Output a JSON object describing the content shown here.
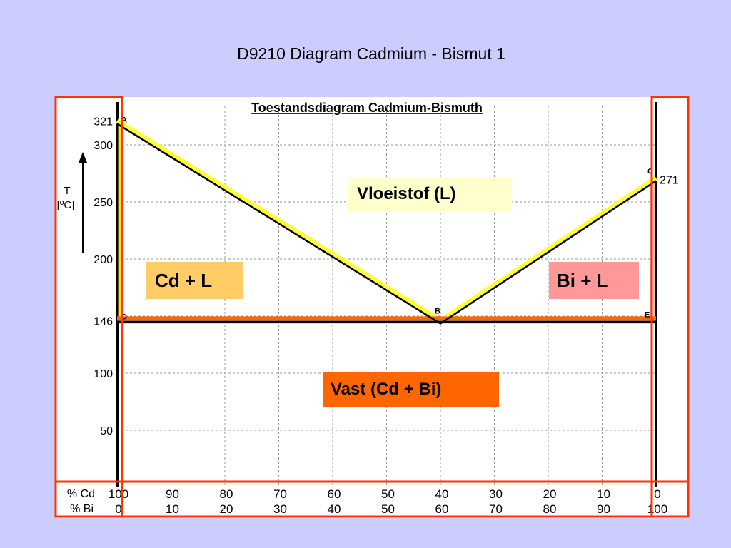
{
  "slide": {
    "title": "D9210 Diagram Cadmium - Bismut 1"
  },
  "chart_data": {
    "type": "line",
    "title": "Toestandsdiagram Cadmium-Bismuth",
    "ylabel_line1": "T",
    "ylabel_line2": "[ºC]",
    "ylim": [
      0,
      340
    ],
    "xlim": [
      0,
      100
    ],
    "y_ticks": [
      50,
      100,
      146,
      200,
      250,
      300,
      321
    ],
    "x_axis_cd_label": "% Cd",
    "x_axis_bi_label": "% Bi",
    "x_ticks_cd": [
      "100",
      "90",
      "80",
      "70",
      "60",
      "50",
      "40",
      "30",
      "20",
      "10",
      "0"
    ],
    "x_ticks_bi": [
      "0",
      "10",
      "20",
      "30",
      "40",
      "50",
      "60",
      "70",
      "80",
      "90",
      "100"
    ],
    "right_value_label": "271",
    "grid": true,
    "points": [
      {
        "name": "A",
        "x": 0,
        "y": 321
      },
      {
        "name": "B",
        "x": 60,
        "y": 146
      },
      {
        "name": "C",
        "x": 100,
        "y": 271
      },
      {
        "name": "D",
        "x": 0,
        "y": 146
      },
      {
        "name": "E",
        "x": 100,
        "y": 146
      }
    ],
    "series": [
      {
        "x": [
          0,
          60,
          100
        ],
        "y": [
          321,
          146,
          271
        ],
        "color": "#000000"
      },
      {
        "x": [
          0,
          100
        ],
        "y": [
          146,
          146
        ],
        "color": "#000000"
      }
    ],
    "regions": [
      {
        "label": "Vloeistof (L)",
        "color": "#ffffcc"
      },
      {
        "label": "Cd + L",
        "color": "#ffcc66"
      },
      {
        "label": "Bi + L",
        "color": "#ff9999"
      },
      {
        "label": "Vast (Cd + Bi)",
        "color": "#ff6600"
      }
    ]
  }
}
